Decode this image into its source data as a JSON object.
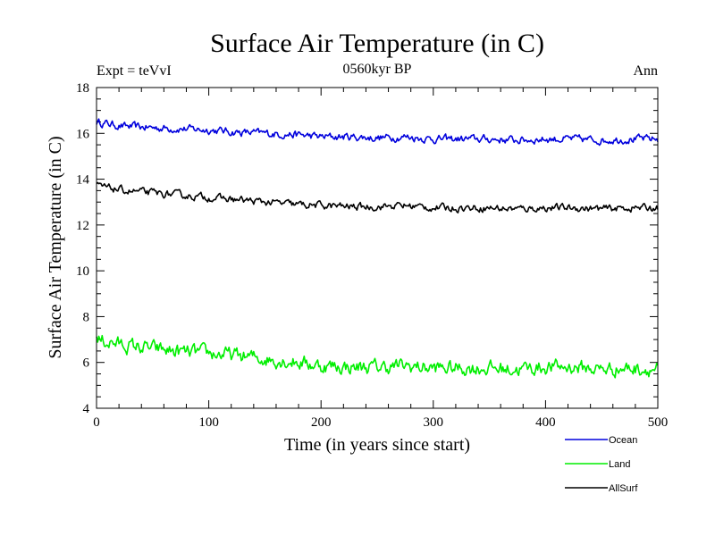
{
  "chart_data": {
    "type": "line",
    "title": "Surface Air Temperature (in C)",
    "subtitle": "0560kyr BP",
    "left_note": "Expt = teVvI",
    "right_note": "Ann",
    "xlabel": "Time (in years since start)",
    "ylabel": "Surface Air Temperature (in C)",
    "xlim": [
      0,
      500
    ],
    "ylim": [
      4,
      18
    ],
    "x_ticks": [
      0,
      100,
      200,
      300,
      400,
      500
    ],
    "x_tick_labels": [
      "0",
      "100",
      "200",
      "300",
      "400",
      "500"
    ],
    "y_ticks": [
      4,
      6,
      8,
      10,
      12,
      14,
      16,
      18
    ],
    "y_tick_labels": [
      "4",
      "6",
      "8",
      "10",
      "12",
      "14",
      "16",
      "18"
    ],
    "x_minor_step": 20,
    "y_minor_step": 0.5,
    "legend_position": "bottom-right",
    "series": [
      {
        "name": "Ocean",
        "color": "#0000dd",
        "x": [
          0,
          25,
          50,
          75,
          100,
          125,
          150,
          175,
          200,
          225,
          250,
          275,
          300,
          325,
          350,
          375,
          400,
          425,
          450,
          475,
          500
        ],
        "values": [
          16.5,
          16.3,
          16.25,
          16.2,
          16.15,
          16.05,
          16.0,
          15.95,
          15.85,
          15.85,
          15.8,
          15.85,
          15.75,
          15.75,
          15.75,
          15.7,
          15.75,
          15.75,
          15.7,
          15.75,
          15.75
        ]
      },
      {
        "name": "Land",
        "color": "#00ee00",
        "x": [
          0,
          25,
          50,
          75,
          100,
          125,
          150,
          175,
          200,
          225,
          250,
          275,
          300,
          325,
          350,
          375,
          400,
          425,
          450,
          475,
          500
        ],
        "values": [
          7.0,
          6.75,
          6.6,
          6.45,
          6.4,
          6.3,
          6.15,
          6.05,
          5.85,
          5.8,
          5.8,
          5.85,
          5.75,
          5.75,
          5.75,
          5.7,
          5.8,
          5.8,
          5.7,
          5.75,
          5.7
        ]
      },
      {
        "name": "AllSurf",
        "color": "#000000",
        "x": [
          0,
          25,
          50,
          75,
          100,
          125,
          150,
          175,
          200,
          225,
          250,
          275,
          300,
          325,
          350,
          375,
          400,
          425,
          450,
          475,
          500
        ],
        "values": [
          13.7,
          13.5,
          13.4,
          13.3,
          13.2,
          13.1,
          13.0,
          12.9,
          12.85,
          12.8,
          12.8,
          12.85,
          12.75,
          12.75,
          12.75,
          12.7,
          12.75,
          12.75,
          12.7,
          12.75,
          12.75
        ]
      }
    ]
  }
}
